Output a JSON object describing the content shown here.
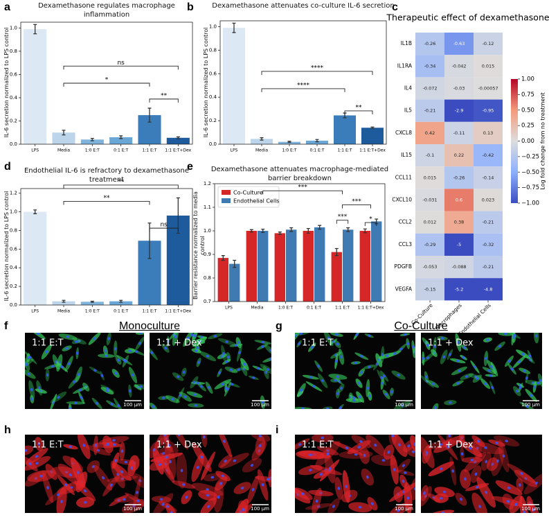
{
  "chart_data": [
    {
      "panel": "a",
      "type": "bar",
      "title": "Dexamethasone regulates macrophage inflammation",
      "ylabel": "IL-6 secretion normalized to LPS control",
      "categories": [
        "LPS",
        "Media",
        "1:0 E:T",
        "0:1 E:T",
        "1:1 E:T",
        "1:1 E:T+Dex"
      ],
      "values": [
        0.99,
        0.1,
        0.04,
        0.06,
        0.25,
        0.055
      ],
      "errors": [
        0.04,
        0.02,
        0.01,
        0.012,
        0.06,
        0.008
      ],
      "colors": [
        "#dce8f4",
        "#bdd5ea",
        "#7fb3dc",
        "#6aa6d6",
        "#3a7dba",
        "#1d5b9c"
      ],
      "ylim": [
        0,
        1.05
      ],
      "yticks": [
        {
          "value": 0,
          "label": "0.0"
        },
        {
          "value": 0.2,
          "label": "0.2"
        },
        {
          "value": 0.4,
          "label": "0.4"
        },
        {
          "value": 0.6,
          "label": "0.6"
        },
        {
          "value": 0.8,
          "label": "0.8"
        },
        {
          "value": 1,
          "label": "1.0"
        }
      ],
      "annotations": [
        "ns",
        "*",
        "**"
      ]
    },
    {
      "panel": "b",
      "type": "bar",
      "title": "Dexamethasone attenuates co-culture IL-6 secretion",
      "ylabel": "IL-6 secretion normalized to LPS control",
      "categories": [
        "LPS",
        "Media",
        "1:0 E:T",
        "0:1 E:T",
        "1:1 E:T",
        "1:1 E:T+Dex"
      ],
      "values": [
        0.99,
        0.045,
        0.02,
        0.03,
        0.245,
        0.14
      ],
      "errors": [
        0.04,
        0.01,
        0.005,
        0.01,
        0.02,
        0.006
      ],
      "colors": [
        "#dce8f4",
        "#bdd5ea",
        "#7fb3dc",
        "#6aa6d6",
        "#3a7dba",
        "#1d5b9c"
      ],
      "ylim": [
        0,
        1.05
      ],
      "yticks": [
        {
          "value": 0,
          "label": "0.0"
        },
        {
          "value": 0.2,
          "label": "0.2"
        },
        {
          "value": 0.4,
          "label": "0.4"
        },
        {
          "value": 0.6,
          "label": "0.6"
        },
        {
          "value": 0.8,
          "label": "0.8"
        },
        {
          "value": 1,
          "label": "1.0"
        }
      ],
      "annotations": [
        "****",
        "****",
        "**"
      ]
    },
    {
      "panel": "c",
      "type": "heatmap",
      "title": "Therapeutic effect of dexamethasone",
      "rows": [
        "IL1B",
        "IL1RA",
        "IL4",
        "IL5",
        "CXCL8",
        "IL15",
        "CCL11",
        "CXCL10",
        "CCL2",
        "CCL3",
        "PDGFB",
        "VEGFA"
      ],
      "columns": [
        "Co-Culture",
        "Macrophages",
        "Endothelial Cells"
      ],
      "values": [
        [
          -0.26,
          -0.63,
          -0.12
        ],
        [
          -0.34,
          -0.042,
          0.015
        ],
        [
          -0.072,
          -0.03,
          -0.00057
        ],
        [
          -0.21,
          -2.9,
          -0.95
        ],
        [
          0.42,
          -0.11,
          0.13
        ],
        [
          -0.1,
          0.22,
          -0.42
        ],
        [
          0.015,
          -0.26,
          -0.14
        ],
        [
          -0.031,
          0.6,
          0.023
        ],
        [
          0.012,
          0.38,
          -0.21
        ],
        [
          -0.29,
          -5,
          -0.32
        ],
        [
          -0.053,
          -0.088,
          -0.21
        ],
        [
          -0.15,
          -5.2,
          -4.8
        ]
      ],
      "colormap": "coolwarm",
      "clim": [
        -1,
        1
      ],
      "cticks": [
        {
          "value": 1,
          "label": "1.00"
        },
        {
          "value": 0.75,
          "label": "0.75"
        },
        {
          "value": 0.5,
          "label": "0.50"
        },
        {
          "value": 0.25,
          "label": "0.25"
        },
        {
          "value": 0,
          "label": "0.00"
        },
        {
          "value": -0.25,
          "label": "−0.25"
        },
        {
          "value": -0.5,
          "label": "−0.50"
        },
        {
          "value": -0.75,
          "label": "−0.75"
        },
        {
          "value": -1,
          "label": "−1.00"
        }
      ],
      "colorbar_label": "Log fold change from no treatment"
    },
    {
      "panel": "d",
      "type": "bar",
      "title": "Endothelial IL-6 is refractory to dexamethasone treatment",
      "ylabel": "IL-6 secretion normalized to LPS control",
      "categories": [
        "LPS",
        "Media",
        "1:0 E:T",
        "0:1 E:T",
        "1:1 E:T",
        "1:1 E:T+Dex"
      ],
      "values": [
        1.0,
        0.04,
        0.035,
        0.04,
        0.69,
        0.96
      ],
      "errors": [
        0.02,
        0.01,
        0.006,
        0.01,
        0.19,
        0.19
      ],
      "colors": [
        "#dce8f4",
        "#bdd5ea",
        "#7fb3dc",
        "#6aa6d6",
        "#3a7dba",
        "#1d5b9c"
      ],
      "ylim": [
        0,
        1.25
      ],
      "yticks": [
        {
          "value": 0,
          "label": "0.0"
        },
        {
          "value": 0.2,
          "label": "0.2"
        },
        {
          "value": 0.4,
          "label": "0.4"
        },
        {
          "value": 0.6,
          "label": "0.6"
        },
        {
          "value": 0.8,
          "label": "0.8"
        },
        {
          "value": 1,
          "label": "1.0"
        },
        {
          "value": 1.2,
          "label": "1.2"
        }
      ],
      "annotations": [
        "**",
        "**",
        "ns"
      ]
    },
    {
      "panel": "e",
      "type": "grouped_bar",
      "title": "Dexamethasone attenuates macrophage-mediated barrier breakdown",
      "ylabel": "Barrier resistance normalized to media control",
      "categories": [
        "LPS",
        "Media",
        "1:0 E:T",
        "0:1 E:T",
        "1:1 E:T",
        "1:1 E:T+Dex"
      ],
      "series": [
        {
          "name": "Co-Culture",
          "color": "#d62728",
          "values": [
            0.885,
            1.0,
            0.99,
            1.0,
            0.91,
            1.0
          ],
          "errors": [
            0.01,
            0.005,
            0.005,
            0.01,
            0.015,
            0.008
          ]
        },
        {
          "name": "Endothelial Cells",
          "color": "#3f7ab3",
          "values": [
            0.86,
            1.0,
            1.005,
            1.015,
            1.005,
            1.04
          ],
          "errors": [
            0.015,
            0.007,
            0.008,
            0.008,
            0.008,
            0.01
          ]
        }
      ],
      "legend": "upper left",
      "ylim": [
        0.7,
        1.2
      ],
      "yticks": [
        {
          "value": 0.7,
          "label": "0.7"
        },
        {
          "value": 0.8,
          "label": "0.8"
        },
        {
          "value": 0.9,
          "label": "0.9"
        },
        {
          "value": 1,
          "label": "1.0"
        },
        {
          "value": 1.1,
          "label": "1.1"
        },
        {
          "value": 1.2,
          "label": "1.2"
        }
      ],
      "annotations": [
        "***",
        "***",
        "***",
        "*"
      ]
    }
  ],
  "figure": {
    "headers": [
      "Monoculture",
      "Co-Culture"
    ],
    "panels": [
      {
        "panel": "f",
        "color": "#35c85a",
        "images": [
          {
            "label": "1:1 E:T",
            "scale_bar": "100 µm"
          },
          {
            "label": "1:1 + Dex",
            "scale_bar": "100 µm"
          }
        ]
      },
      {
        "panel": "g",
        "color": "#35c85a",
        "images": [
          {
            "label": "1:1 E:T",
            "scale_bar": "100 µm"
          },
          {
            "label": "1:1 + Dex",
            "scale_bar": "100 µm"
          }
        ]
      },
      {
        "panel": "h",
        "color": "#e0242a",
        "images": [
          {
            "label": "1:1 E:T",
            "scale_bar": "100 µm"
          },
          {
            "label": "1:1 + Dex",
            "scale_bar": "100 µm"
          }
        ]
      },
      {
        "panel": "i",
        "color": "#e0242a",
        "images": [
          {
            "label": "1:1 E:T",
            "scale_bar": "100 µm"
          },
          {
            "label": "1:1 + Dex",
            "scale_bar": "100 µm"
          }
        ]
      }
    ]
  }
}
